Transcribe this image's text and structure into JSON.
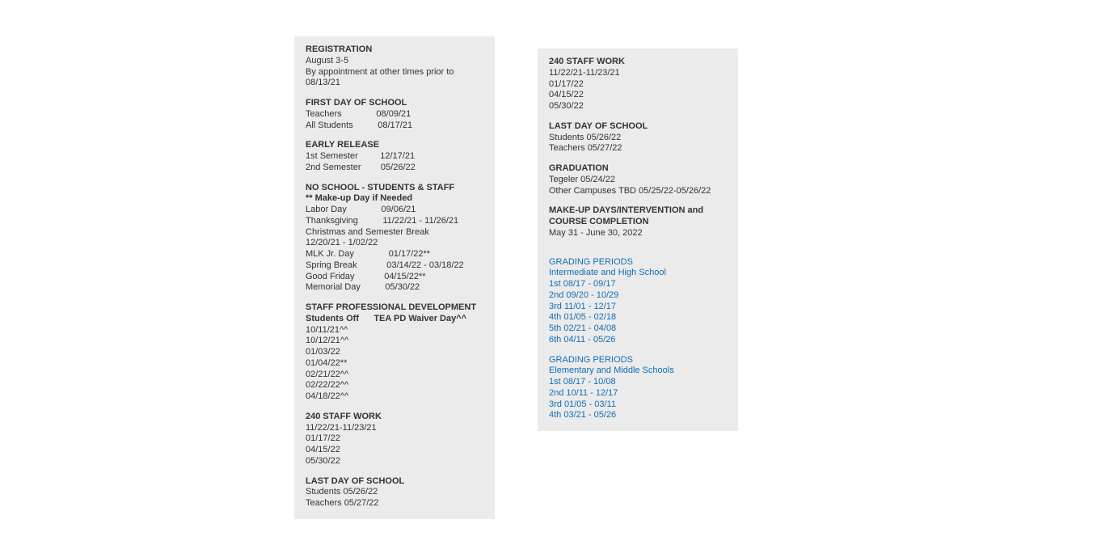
{
  "colors": {
    "page_bg": "#ffffff",
    "panel_bg": "#ebebeb",
    "text": "#333333",
    "link": "#116eb5"
  },
  "typography": {
    "font_family": "Verdana, Arial, sans-serif",
    "font_size_pt": 8,
    "line_height": 1.25
  },
  "col1": {
    "registration": {
      "title": "REGISTRATION",
      "line1": "August 3-5",
      "line2": "By appointment at other times prior to 08/13/21"
    },
    "first_day": {
      "title": "FIRST DAY OF SCHOOL",
      "teachers": "Teachers              08/09/21",
      "students": "All Students          08/17/21"
    },
    "early_release": {
      "title": "EARLY RELEASE",
      "sem1": "1st Semester         12/17/21",
      "sem2": "2nd Semester        05/26/22"
    },
    "no_school": {
      "title": "NO SCHOOL - STUDENTS & STAFF",
      "subtitle": "** Make-up Day if Needed",
      "labor": "Labor Day              09/06/21",
      "thanksgiving": "Thanksgiving          11/22/21 - 11/26/21",
      "xmas1": "Christmas and Semester Break",
      "xmas2": "12/20/21 - 1/02/22",
      "mlk": "MLK Jr. Day              01/17/22**",
      "spring": "Spring Break            03/14/22 - 03/18/22",
      "goodfri": "Good Friday            04/15/22**",
      "memorial": "Memorial Day          05/30/22"
    },
    "staff_pd": {
      "title": "STAFF PROFESSIONAL DEVELOPMENT",
      "subtitle": "Students Off      TEA PD Waiver Day^^",
      "d1": "10/11/21^^",
      "d2": "10/12/21^^",
      "d3": "01/03/22",
      "d4": "01/04/22**",
      "d5": "02/21/22^^",
      "d6": "02/22/22^^",
      "d7": "04/18/22^^"
    },
    "staff_work": {
      "title": "240 STAFF WORK",
      "l1": "11/22/21-11/23/21",
      "l2": "01/17/22",
      "l3": "04/15/22",
      "l4": "05/30/22"
    },
    "last_day": {
      "title": "LAST DAY OF SCHOOL",
      "students": "Students 05/26/22",
      "teachers": "Teachers 05/27/22"
    }
  },
  "col2": {
    "staff_work": {
      "title": "240 STAFF WORK",
      "l1": "11/22/21-11/23/21",
      "l2": "01/17/22",
      "l3": "04/15/22",
      "l4": "05/30/22"
    },
    "last_day": {
      "title": "LAST DAY OF SCHOOL",
      "students": "Students 05/26/22",
      "teachers": "Teachers 05/27/22"
    },
    "graduation": {
      "title": "GRADUATION",
      "l1": "Tegeler 05/24/22",
      "l2": "Other Campuses TBD 05/25/22-05/26/22"
    },
    "makeup": {
      "title": "MAKE-UP DAYS/INTERVENTION and COURSE COMPLETION",
      "l1": "May 31 - June 30, 2022"
    },
    "grading_hs": {
      "heading": "GRADING PERIODS",
      "sub": "Intermediate and High School",
      "p1": "1st 08/17 - 09/17",
      "p2": "2nd 09/20 - 10/29",
      "p3": "3rd 11/01 - 12/17",
      "p4": "4th 01/05 - 02/18",
      "p5": "5th 02/21 - 04/08",
      "p6": "6th 04/11 - 05/26"
    },
    "grading_elem": {
      "heading": "GRADING PERIODS",
      "sub": "Elementary and Middle Schools",
      "p1": "1st 08/17 - 10/08",
      "p2": "2nd 10/11 - 12/17",
      "p3": "3rd 01/05 - 03/11",
      "p4": "4th 03/21 - 05/26"
    }
  }
}
